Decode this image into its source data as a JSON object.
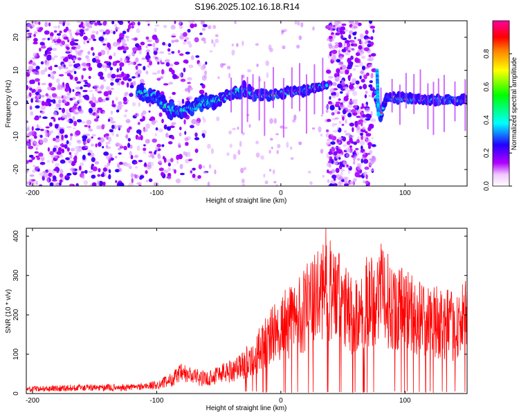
{
  "title": "S196.2025.102.16.18.R14",
  "chart_data": [
    {
      "type": "heatmap",
      "title": "S196.2025.102.16.18.R14",
      "xlabel": "Height of straight line (km)",
      "ylabel": "Frequency (Hz)",
      "xlim": [
        -205,
        150
      ],
      "ylim": [
        -25,
        25
      ],
      "xticks": [
        -200,
        -100,
        0,
        100
      ],
      "yticks": [
        -20,
        -10,
        0,
        10,
        20
      ],
      "colorbar": {
        "label": "Normalized spectral amplitude",
        "range": [
          0,
          1
        ],
        "ticks": [
          "0.0",
          "0.2",
          "0.4",
          "0.6",
          "0.8"
        ],
        "tick_values": [
          0,
          0.2,
          0.4,
          0.6,
          0.8
        ],
        "colormap": [
          "#ffffff",
          "#ff00ff",
          "#0000ff",
          "#00ffff",
          "#00ff00",
          "#ffff00",
          "#ff0000"
        ]
      },
      "ridge": {
        "x": [
          -110,
          -100,
          -90,
          -80,
          -70,
          -60,
          -50,
          -40,
          -30,
          -20,
          -10,
          0,
          10,
          20,
          30,
          37,
          55,
          75,
          80,
          85,
          100,
          120,
          140,
          150
        ],
        "y": [
          3,
          2,
          -2,
          -2.5,
          -1,
          0.5,
          1,
          3,
          4,
          2.5,
          2.5,
          3,
          3.5,
          4,
          5,
          5.5,
          null,
          5,
          -4,
          2,
          1.5,
          1.2,
          1,
          1
        ]
      },
      "grid": false,
      "noise_bands_x": [
        [
          -205,
          -60
        ],
        [
          37,
          75
        ]
      ]
    },
    {
      "type": "line",
      "xlabel": "Height of straight line (km)",
      "ylabel": "SNR (10 * v/v)",
      "xlim": [
        -205,
        150
      ],
      "ylim": [
        0,
        420
      ],
      "xticks": [
        -200,
        -100,
        0,
        100
      ],
      "yticks": [
        0,
        100,
        200,
        300,
        400
      ],
      "color": "#ff0000",
      "grid": false,
      "envelope": {
        "x": [
          -205,
          -180,
          -150,
          -130,
          -110,
          -100,
          -90,
          -80,
          -70,
          -60,
          -50,
          -40,
          -30,
          -20,
          -10,
          0,
          10,
          20,
          30,
          35,
          40,
          50,
          60,
          70,
          80,
          90,
          100,
          110,
          120,
          130,
          140,
          150
        ],
        "y": [
          15,
          18,
          20,
          20,
          25,
          30,
          45,
          70,
          60,
          50,
          70,
          80,
          100,
          140,
          190,
          230,
          260,
          300,
          330,
          390,
          370,
          310,
          260,
          330,
          350,
          310,
          300,
          270,
          250,
          250,
          230,
          270
        ]
      },
      "dropout_x_min": -30
    }
  ]
}
